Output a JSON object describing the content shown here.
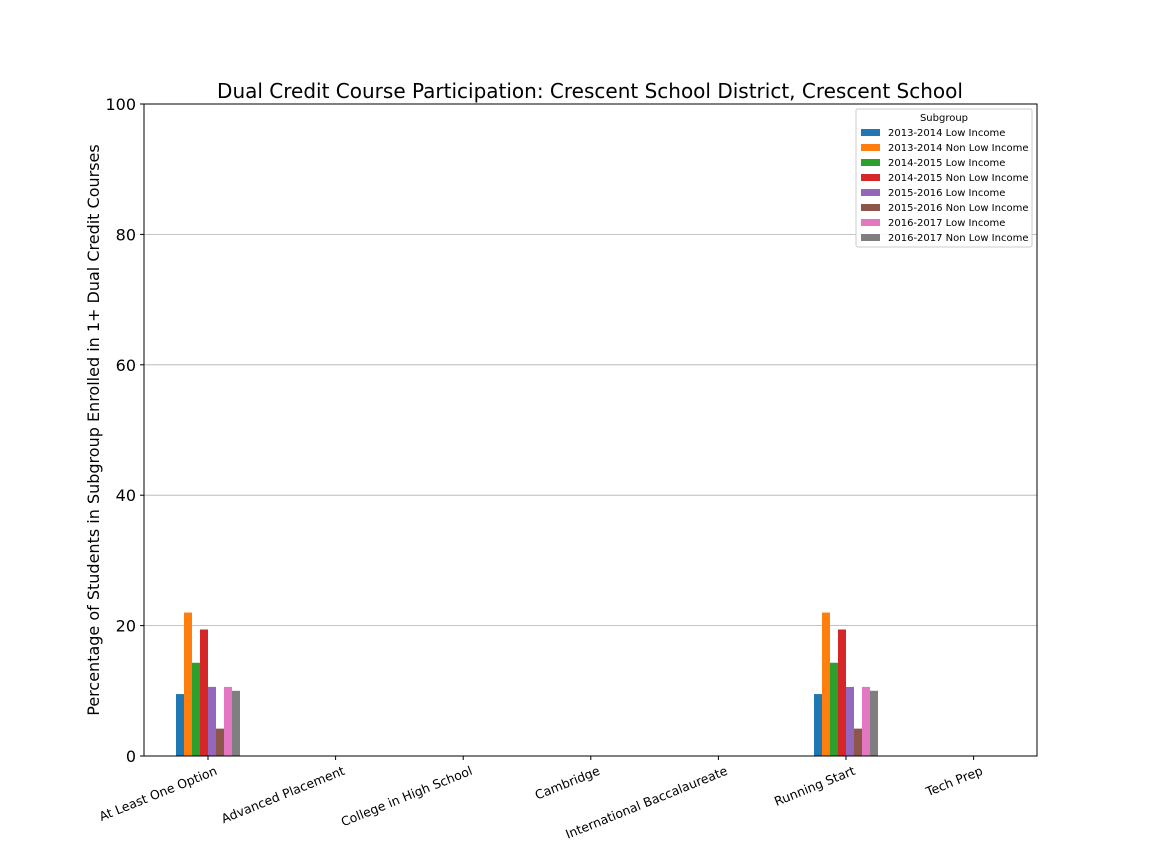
{
  "chart_data": {
    "type": "bar",
    "title": "Dual Credit Course Participation: Crescent School District, Crescent School",
    "xlabel": "",
    "ylabel": "Percentage of Students in Subgroup Enrolled in 1+ Dual Credit Courses",
    "ylim": [
      0,
      100
    ],
    "yticks": [
      0,
      20,
      40,
      60,
      80,
      100
    ],
    "grid": "horizontal",
    "legend_title": "Subgroup",
    "legend_position": "top-right",
    "categories": [
      "At Least One Option",
      "Advanced Placement",
      "College in High School",
      "Cambridge",
      "International Baccalaureate",
      "Running Start",
      "Tech Prep"
    ],
    "series": [
      {
        "name": "2013-2014 Low Income",
        "color": "#1f77b4",
        "values": [
          9.5,
          0,
          0,
          0,
          0,
          9.5,
          0
        ]
      },
      {
        "name": "2013-2014 Non Low Income",
        "color": "#ff7f0e",
        "values": [
          22.0,
          0,
          0,
          0,
          0,
          22.0,
          0
        ]
      },
      {
        "name": "2014-2015 Low Income",
        "color": "#2ca02c",
        "values": [
          14.3,
          0,
          0,
          0,
          0,
          14.3,
          0
        ]
      },
      {
        "name": "2014-2015 Non Low Income",
        "color": "#d62728",
        "values": [
          19.4,
          0,
          0,
          0,
          0,
          19.4,
          0
        ]
      },
      {
        "name": "2015-2016 Low Income",
        "color": "#9467bd",
        "values": [
          10.6,
          0,
          0,
          0,
          0,
          10.6,
          0
        ]
      },
      {
        "name": "2015-2016 Non Low Income",
        "color": "#8c564b",
        "values": [
          4.2,
          0,
          0,
          0,
          0,
          4.2,
          0
        ]
      },
      {
        "name": "2016-2017 Low Income",
        "color": "#e377c2",
        "values": [
          10.6,
          0,
          0,
          0,
          0,
          10.6,
          0
        ]
      },
      {
        "name": "2016-2017 Non Low Income",
        "color": "#7f7f7f",
        "values": [
          10.0,
          0,
          0,
          0,
          0,
          10.0,
          0
        ]
      }
    ]
  }
}
